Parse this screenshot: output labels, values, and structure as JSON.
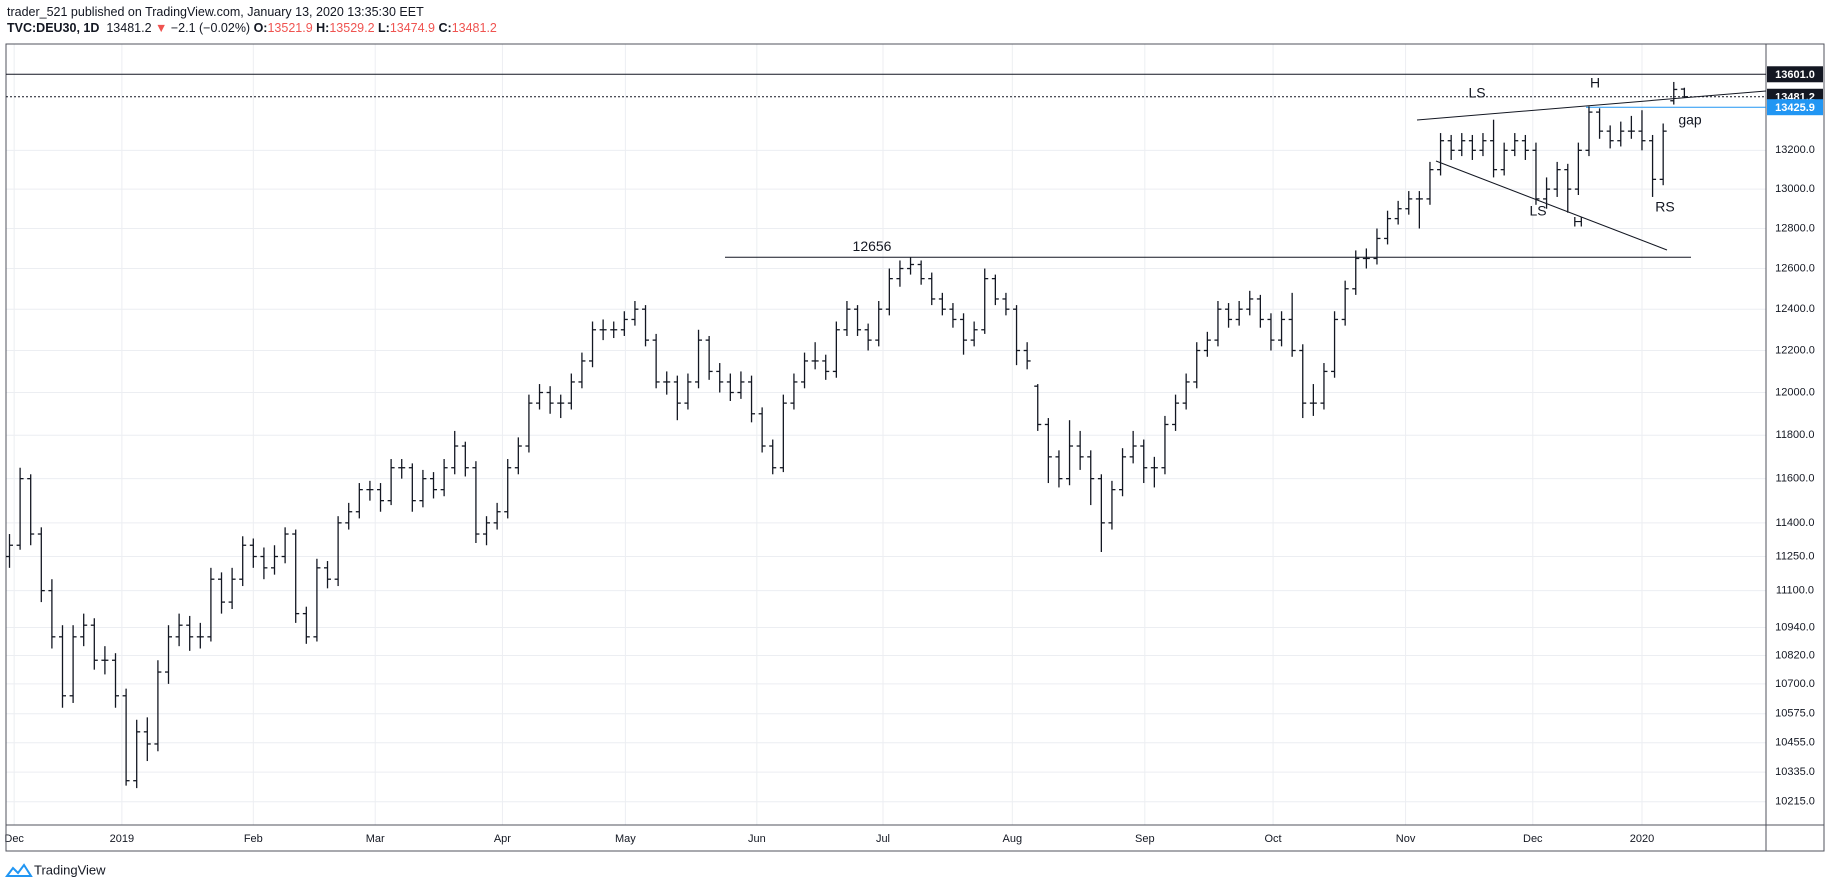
{
  "header": {
    "author": "trader_521 published on TradingView.com, January 13, 2020 13:35:30 EET",
    "symbol": "TVC:DEU30, 1D",
    "last": "13481.2",
    "arrow": "▼",
    "change": "−2.1 (−0.02%)",
    "o_label": "O:",
    "open": "13521.9",
    "h_label": "H:",
    "high": "13529.2",
    "l_label": "L:",
    "low": "13474.9",
    "c_label": "C:",
    "close": "13481.2"
  },
  "footer": {
    "brand": "TradingView"
  },
  "chart_data": {
    "type": "ohlc",
    "color": "#131722",
    "log_scale": true,
    "grid": true,
    "xlim": [
      -0.33,
      165.7
    ],
    "ylim": [
      10122,
      13764
    ],
    "xticks": [
      {
        "value": 0.44,
        "label": "Dec"
      },
      {
        "value": 10.6,
        "label": "2019"
      },
      {
        "value": 23.0,
        "label": "Feb"
      },
      {
        "value": 34.5,
        "label": "Mar"
      },
      {
        "value": 46.5,
        "label": "Apr"
      },
      {
        "value": 58.1,
        "label": "May"
      },
      {
        "value": 70.5,
        "label": "Jun"
      },
      {
        "value": 82.4,
        "label": "Jul"
      },
      {
        "value": 94.6,
        "label": "Aug"
      },
      {
        "value": 107.1,
        "label": "Sep"
      },
      {
        "value": 119.2,
        "label": "Oct"
      },
      {
        "value": 131.7,
        "label": "Nov"
      },
      {
        "value": 143.7,
        "label": "Dec"
      },
      {
        "value": 154.0,
        "label": "2020"
      }
    ],
    "yticks": [
      {
        "value": 10215,
        "label": "10215.0"
      },
      {
        "value": 10335,
        "label": "10335.0"
      },
      {
        "value": 10455,
        "label": "10455.0"
      },
      {
        "value": 10575,
        "label": "10575.0"
      },
      {
        "value": 10700,
        "label": "10700.0"
      },
      {
        "value": 10820,
        "label": "10820.0"
      },
      {
        "value": 10940,
        "label": "10940.0"
      },
      {
        "value": 11100,
        "label": "11100.0"
      },
      {
        "value": 11250,
        "label": "11250.0"
      },
      {
        "value": 11400,
        "label": "11400.0"
      },
      {
        "value": 11600,
        "label": "11600.0"
      },
      {
        "value": 11800,
        "label": "11800.0"
      },
      {
        "value": 12000,
        "label": "12000.0"
      },
      {
        "value": 12200,
        "label": "12200.0"
      },
      {
        "value": 12400,
        "label": "12400.0"
      },
      {
        "value": 12600,
        "label": "12600.0"
      },
      {
        "value": 12800,
        "label": "12800.0"
      },
      {
        "value": 13000,
        "label": "13000.0"
      },
      {
        "value": 13200,
        "label": "13200.0"
      }
    ],
    "price_lines": [
      {
        "value": 13601,
        "label": "13601.0",
        "color": "#131722"
      },
      {
        "value": 13481.2,
        "label": "13481.2",
        "color": "#131722"
      },
      {
        "value": 13425.9,
        "label": "13425.9",
        "color": "#2196f3"
      }
    ],
    "level_line": 12656,
    "annotations": [
      {
        "text": "LS"
      },
      {
        "text": "H"
      },
      {
        "text": "LS"
      },
      {
        "text": "H"
      },
      {
        "text": "RS"
      },
      {
        "text": "gap"
      }
    ],
    "values": [
      [
        11250,
        11350,
        11200,
        11300
      ],
      [
        11300,
        11650,
        11280,
        11600
      ],
      [
        11600,
        11620,
        11300,
        11350
      ],
      [
        11350,
        11380,
        11050,
        11100
      ],
      [
        11100,
        11150,
        10850,
        10900
      ],
      [
        10900,
        10950,
        10600,
        10650
      ],
      [
        10650,
        10950,
        10620,
        10900
      ],
      [
        10900,
        11000,
        10860,
        10950
      ],
      [
        10950,
        10980,
        10760,
        10800
      ],
      [
        10800,
        10860,
        10740,
        10800
      ],
      [
        10800,
        10830,
        10600,
        10650
      ],
      [
        10650,
        10680,
        10280,
        10300
      ],
      [
        10300,
        10550,
        10270,
        10500
      ],
      [
        10500,
        10560,
        10380,
        10450
      ],
      [
        10450,
        10800,
        10420,
        10750
      ],
      [
        10750,
        10950,
        10700,
        10900
      ],
      [
        10900,
        11000,
        10860,
        10950
      ],
      [
        10950,
        10990,
        10840,
        10900
      ],
      [
        10900,
        10960,
        10850,
        10900
      ],
      [
        10900,
        11200,
        10880,
        11150
      ],
      [
        11150,
        11180,
        11000,
        11050
      ],
      [
        11050,
        11200,
        11020,
        11150
      ],
      [
        11150,
        11340,
        11120,
        11300
      ],
      [
        11300,
        11330,
        11200,
        11250
      ],
      [
        11250,
        11290,
        11150,
        11200
      ],
      [
        11200,
        11300,
        11170,
        11250
      ],
      [
        11250,
        11380,
        11220,
        11350
      ],
      [
        11350,
        11370,
        10960,
        11000
      ],
      [
        11000,
        11030,
        10870,
        10900
      ],
      [
        10900,
        11240,
        10880,
        11200
      ],
      [
        11200,
        11230,
        11110,
        11150
      ],
      [
        11150,
        11430,
        11120,
        11400
      ],
      [
        11400,
        11490,
        11370,
        11450
      ],
      [
        11450,
        11580,
        11420,
        11550
      ],
      [
        11550,
        11590,
        11500,
        11550
      ],
      [
        11550,
        11580,
        11450,
        11500
      ],
      [
        11500,
        11690,
        11480,
        11650
      ],
      [
        11650,
        11690,
        11600,
        11650
      ],
      [
        11650,
        11670,
        11450,
        11500
      ],
      [
        11500,
        11640,
        11470,
        11600
      ],
      [
        11600,
        11630,
        11510,
        11550
      ],
      [
        11550,
        11690,
        11520,
        11650
      ],
      [
        11650,
        11820,
        11620,
        11750
      ],
      [
        11750,
        11770,
        11610,
        11650
      ],
      [
        11650,
        11680,
        11310,
        11350
      ],
      [
        11350,
        11430,
        11300,
        11400
      ],
      [
        11400,
        11490,
        11370,
        11450
      ],
      [
        11450,
        11690,
        11420,
        11650
      ],
      [
        11650,
        11790,
        11620,
        11750
      ],
      [
        11750,
        11990,
        11720,
        11950
      ],
      [
        11950,
        12040,
        11920,
        12000
      ],
      [
        12000,
        12030,
        11900,
        11950
      ],
      [
        11950,
        11990,
        11880,
        11950
      ],
      [
        11950,
        12090,
        11920,
        12050
      ],
      [
        12050,
        12190,
        12020,
        12150
      ],
      [
        12150,
        12340,
        12120,
        12300
      ],
      [
        12300,
        12350,
        12250,
        12300
      ],
      [
        12300,
        12340,
        12260,
        12300
      ],
      [
        12300,
        12390,
        12270,
        12350
      ],
      [
        12350,
        12440,
        12320,
        12400
      ],
      [
        12400,
        12420,
        12220,
        12250
      ],
      [
        12250,
        12280,
        12020,
        12050
      ],
      [
        12050,
        12100,
        11990,
        12050
      ],
      [
        12050,
        12080,
        11870,
        11950
      ],
      [
        11950,
        12090,
        11920,
        12050
      ],
      [
        12050,
        12300,
        12020,
        12250
      ],
      [
        12250,
        12270,
        12060,
        12100
      ],
      [
        12100,
        12140,
        12000,
        12050
      ],
      [
        12050,
        12090,
        11960,
        12000
      ],
      [
        12000,
        12100,
        11970,
        12050
      ],
      [
        12050,
        12080,
        11860,
        11900
      ],
      [
        11900,
        11930,
        11720,
        11750
      ],
      [
        11750,
        11780,
        11620,
        11650
      ],
      [
        11650,
        11990,
        11630,
        11950
      ],
      [
        11950,
        12090,
        11920,
        12050
      ],
      [
        12050,
        12190,
        12020,
        12150
      ],
      [
        12150,
        12240,
        12110,
        12150
      ],
      [
        12150,
        12180,
        12060,
        12100
      ],
      [
        12100,
        12340,
        12070,
        12300
      ],
      [
        12300,
        12440,
        12270,
        12400
      ],
      [
        12400,
        12420,
        12270,
        12300
      ],
      [
        12300,
        12330,
        12200,
        12250
      ],
      [
        12250,
        12440,
        12220,
        12400
      ],
      [
        12400,
        12600,
        12370,
        12550
      ],
      [
        12550,
        12640,
        12510,
        12600
      ],
      [
        12600,
        12656,
        12570,
        12620
      ],
      [
        12620,
        12640,
        12520,
        12550
      ],
      [
        12550,
        12580,
        12420,
        12450
      ],
      [
        12450,
        12480,
        12370,
        12400
      ],
      [
        12400,
        12430,
        12310,
        12350
      ],
      [
        12350,
        12380,
        12180,
        12250
      ],
      [
        12250,
        12340,
        12220,
        12300
      ],
      [
        12300,
        12600,
        12280,
        12550
      ],
      [
        12550,
        12570,
        12420,
        12450
      ],
      [
        12450,
        12480,
        12370,
        12400
      ],
      [
        12400,
        12420,
        12130,
        12200
      ],
      [
        12200,
        12240,
        12110,
        12150
      ],
      [
        12030,
        12040,
        11820,
        11850
      ],
      [
        11850,
        11880,
        11580,
        11700
      ],
      [
        11700,
        11730,
        11560,
        11600
      ],
      [
        11600,
        11870,
        11570,
        11750
      ],
      [
        11750,
        11820,
        11640,
        11700
      ],
      [
        11700,
        11730,
        11480,
        11600
      ],
      [
        11600,
        11620,
        11270,
        11400
      ],
      [
        11400,
        11590,
        11370,
        11550
      ],
      [
        11550,
        11740,
        11520,
        11700
      ],
      [
        11700,
        11820,
        11670,
        11750
      ],
      [
        11750,
        11780,
        11580,
        11650
      ],
      [
        11650,
        11700,
        11560,
        11650
      ],
      [
        11650,
        11890,
        11620,
        11850
      ],
      [
        11850,
        11990,
        11820,
        11950
      ],
      [
        11950,
        12090,
        11920,
        12050
      ],
      [
        12050,
        12240,
        12020,
        12200
      ],
      [
        12200,
        12290,
        12170,
        12250
      ],
      [
        12250,
        12440,
        12220,
        12400
      ],
      [
        12400,
        12430,
        12310,
        12350
      ],
      [
        12350,
        12440,
        12320,
        12400
      ],
      [
        12400,
        12490,
        12370,
        12450
      ],
      [
        12450,
        12470,
        12310,
        12350
      ],
      [
        12350,
        12380,
        12200,
        12250
      ],
      [
        12250,
        12390,
        12220,
        12350
      ],
      [
        12350,
        12480,
        12170,
        12200
      ],
      [
        12200,
        12230,
        11880,
        11950
      ],
      [
        11950,
        12040,
        11890,
        11950
      ],
      [
        11950,
        12140,
        11920,
        12100
      ],
      [
        12100,
        12390,
        12070,
        12350
      ],
      [
        12350,
        12540,
        12320,
        12500
      ],
      [
        12500,
        12690,
        12470,
        12650
      ],
      [
        12650,
        12700,
        12600,
        12650
      ],
      [
        12650,
        12800,
        12620,
        12750
      ],
      [
        12750,
        12890,
        12720,
        12850
      ],
      [
        12850,
        12940,
        12820,
        12900
      ],
      [
        12900,
        12990,
        12870,
        12950
      ],
      [
        12950,
        12990,
        12800,
        12950
      ],
      [
        12950,
        13140,
        12920,
        13100
      ],
      [
        13100,
        13290,
        13070,
        13250
      ],
      [
        13250,
        13280,
        13150,
        13200
      ],
      [
        13200,
        13290,
        13170,
        13250
      ],
      [
        13250,
        13280,
        13150,
        13200
      ],
      [
        13200,
        13290,
        13170,
        13250
      ],
      [
        13250,
        13360,
        13060,
        13100
      ],
      [
        13100,
        13240,
        13070,
        13200
      ],
      [
        13200,
        13290,
        13170,
        13250
      ],
      [
        13250,
        13280,
        13150,
        13200
      ],
      [
        13200,
        13240,
        12920,
        12950
      ],
      [
        12950,
        13060,
        12900,
        13000
      ],
      [
        13000,
        13140,
        12960,
        13100
      ],
      [
        13100,
        13130,
        12880,
        13000
      ],
      [
        13000,
        13240,
        12970,
        13200
      ],
      [
        13200,
        13430,
        13170,
        13400
      ],
      [
        13400,
        13420,
        13260,
        13300
      ],
      [
        13300,
        13330,
        13210,
        13250
      ],
      [
        13250,
        13350,
        13220,
        13300
      ],
      [
        13300,
        13380,
        13260,
        13300
      ],
      [
        13300,
        13410,
        13200,
        13250
      ],
      [
        13250,
        13280,
        12960,
        13050
      ],
      [
        13050,
        13340,
        13020,
        13300
      ],
      [
        13460,
        13560,
        13440,
        13520
      ],
      [
        13521.9,
        13529.2,
        13474.9,
        13481.2
      ]
    ]
  }
}
